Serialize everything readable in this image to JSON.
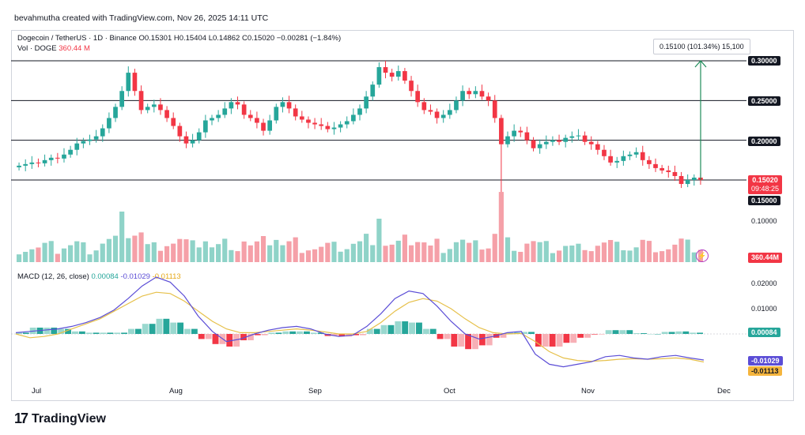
{
  "caption": "bevahmutha created with TradingView.com, Nov 26, 2025 14:11 UTC",
  "legend": {
    "symbol": "Dogecoin / TetherUS · 1D · Binance",
    "ohlc": "O0.15301 H0.15404 L0.14862 C0.15020 −0.00281 (−1.84%)",
    "vol_label": "Vol · DOGE",
    "vol_value": "360.44 M",
    "macd_label": "MACD (12, 26, close)",
    "macd_hist": "0.00084",
    "macd_line": "-0.01029",
    "macd_signal": "-0.01113"
  },
  "price_axis": {
    "ticks": [
      "0.30000",
      "0.25000",
      "0.20000",
      "0.15000",
      "0.10000"
    ],
    "current_price": "0.15020",
    "countdown": "09:48:25",
    "volume_tag": "360.44M"
  },
  "macd_axis": {
    "ticks": [
      "0.02000",
      "0.01000"
    ],
    "hist_tag": "0.00084",
    "line_tag": "-0.01029",
    "signal_tag": "-0.01113"
  },
  "time_axis": [
    "Jul",
    "Aug",
    "Sep",
    "Oct",
    "Nov",
    "Dec"
  ],
  "measure": {
    "label": "0.15100 (101.34%) 15,100"
  },
  "brand": {
    "mark": "17",
    "name": "TradingView"
  },
  "colors": {
    "up": "#26a69a",
    "down": "#f23645",
    "macd_line": "#5b4dd6",
    "signal_line": "#e6c04a",
    "measure_arrow": "#1e8c5a"
  },
  "chart_data": {
    "type": "candlestick",
    "horizontal_levels": [
      0.3,
      0.25,
      0.2,
      0.15
    ],
    "x_months": [
      "Jul",
      "Aug",
      "Sep",
      "Oct",
      "Nov",
      "Dec"
    ],
    "close_path": [
      0.168,
      0.17,
      0.172,
      0.171,
      0.175,
      0.178,
      0.177,
      0.182,
      0.188,
      0.196,
      0.199,
      0.201,
      0.205,
      0.215,
      0.228,
      0.242,
      0.262,
      0.285,
      0.262,
      0.238,
      0.242,
      0.245,
      0.238,
      0.228,
      0.218,
      0.205,
      0.196,
      0.2,
      0.21,
      0.225,
      0.228,
      0.232,
      0.24,
      0.248,
      0.245,
      0.232,
      0.228,
      0.222,
      0.212,
      0.225,
      0.242,
      0.248,
      0.24,
      0.23,
      0.226,
      0.222,
      0.22,
      0.218,
      0.214,
      0.216,
      0.22,
      0.224,
      0.232,
      0.24,
      0.255,
      0.27,
      0.292,
      0.285,
      0.28,
      0.287,
      0.275,
      0.262,
      0.248,
      0.238,
      0.236,
      0.228,
      0.232,
      0.238,
      0.25,
      0.262,
      0.258,
      0.262,
      0.255,
      0.25,
      0.228,
      0.195,
      0.205,
      0.212,
      0.21,
      0.2,
      0.19,
      0.195,
      0.198,
      0.2,
      0.198,
      0.203,
      0.205,
      0.206,
      0.198,
      0.195,
      0.188,
      0.18,
      0.172,
      0.174,
      0.18,
      0.182,
      0.185,
      0.175,
      0.17,
      0.165,
      0.162,
      0.16,
      0.155,
      0.145,
      0.15,
      0.153,
      0.15
    ],
    "macd_values": [
      0.0005,
      0.001,
      0.0015,
      0.002,
      0.003,
      0.0045,
      0.0065,
      0.0095,
      0.014,
      0.019,
      0.0225,
      0.0205,
      0.015,
      0.007,
      0.001,
      -0.003,
      -0.002,
      0.0,
      0.0015,
      0.0025,
      0.003,
      0.002,
      0.0,
      -0.001,
      -0.0005,
      0.003,
      0.008,
      0.014,
      0.017,
      0.016,
      0.011,
      0.005,
      0.0,
      -0.002,
      -0.001,
      0.0005,
      0.001,
      -0.008,
      -0.012,
      -0.013,
      -0.012,
      -0.011,
      -0.009,
      -0.0085,
      -0.0095,
      -0.01,
      -0.009,
      -0.0085,
      -0.0095,
      -0.0103
    ],
    "signal_values": [
      0.0,
      -0.0015,
      -0.001,
      0.0,
      0.002,
      0.004,
      0.006,
      0.009,
      0.012,
      0.015,
      0.0165,
      0.016,
      0.013,
      0.009,
      0.005,
      0.002,
      0.0005,
      0.0005,
      0.001,
      0.0015,
      0.002,
      0.0015,
      0.0008,
      0.0,
      0.0,
      0.001,
      0.0045,
      0.009,
      0.0125,
      0.014,
      0.013,
      0.01,
      0.006,
      0.0025,
      0.0005,
      0.0,
      0.0002,
      -0.003,
      -0.007,
      -0.0095,
      -0.0105,
      -0.0108,
      -0.0105,
      -0.01,
      -0.0098,
      -0.01,
      -0.0098,
      -0.0095,
      -0.01,
      -0.0111
    ]
  }
}
